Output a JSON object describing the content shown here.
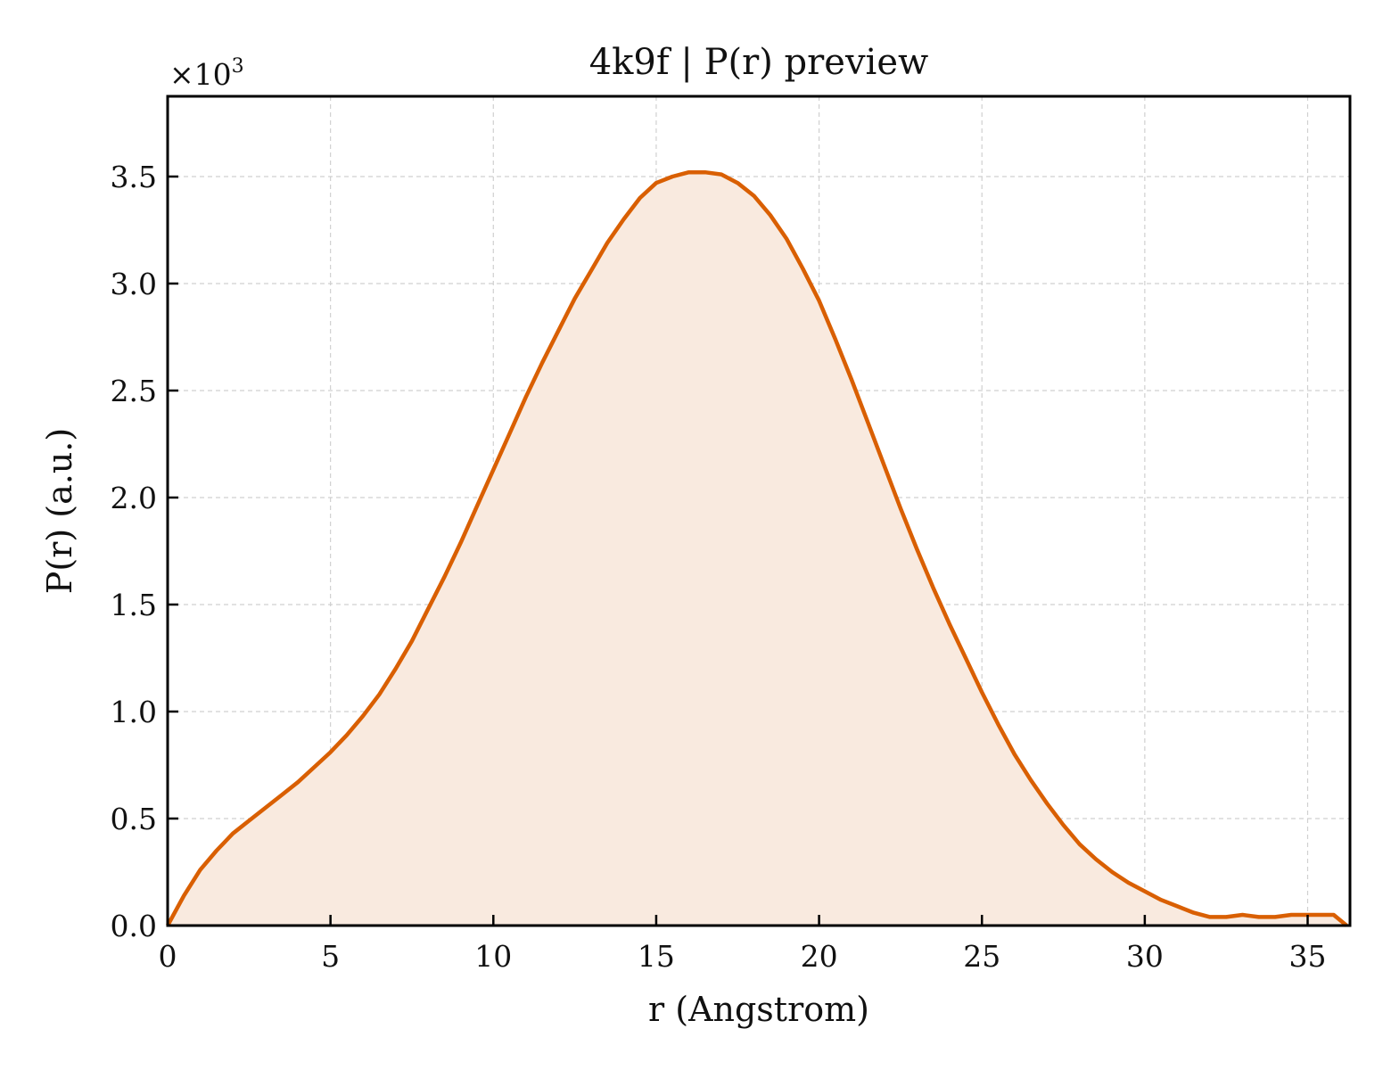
{
  "chart_data": {
    "type": "area",
    "title": "4k9f | P(r) preview",
    "xlabel": "r (Angstrom)",
    "ylabel": "P(r) (a.u.)",
    "y_scale_note": "×10",
    "y_scale_exponent": "3",
    "xlim": [
      0,
      36.3
    ],
    "ylim": [
      0,
      3.875
    ],
    "x_ticks": [
      0,
      5,
      10,
      15,
      20,
      25,
      30,
      35
    ],
    "x_tick_labels": [
      "0",
      "5",
      "10",
      "15",
      "20",
      "25",
      "30",
      "35"
    ],
    "y_ticks": [
      0,
      0.5,
      1.0,
      1.5,
      2.0,
      2.5,
      3.0,
      3.5
    ],
    "y_tick_labels": [
      "0.0",
      "0.5",
      "1.0",
      "1.5",
      "2.0",
      "2.5",
      "3.0",
      "3.5"
    ],
    "grid": true,
    "line_color": "#d95f02",
    "fill_color": "#f9eadf",
    "series": [
      {
        "x": [
          0,
          0.5,
          1,
          1.5,
          2,
          2.5,
          3,
          3.5,
          4,
          4.5,
          5,
          5.5,
          6,
          6.5,
          7,
          7.5,
          8,
          8.5,
          9,
          9.5,
          10,
          10.5,
          11,
          11.5,
          12,
          12.5,
          13,
          13.5,
          14,
          14.5,
          15,
          15.5,
          16,
          16.5,
          17,
          17.5,
          18,
          18.5,
          19,
          19.5,
          20,
          20.5,
          21,
          21.5,
          22,
          22.5,
          23,
          23.5,
          24,
          24.5,
          25,
          25.5,
          26,
          26.5,
          27,
          27.5,
          28,
          28.5,
          29,
          29.5,
          30,
          30.5,
          31,
          31.5,
          32,
          32.5,
          33,
          33.5,
          34,
          34.5,
          35,
          35.3,
          35.8,
          36.2
        ],
        "y": [
          0.0,
          0.14,
          0.26,
          0.35,
          0.43,
          0.49,
          0.55,
          0.61,
          0.67,
          0.74,
          0.81,
          0.89,
          0.98,
          1.08,
          1.2,
          1.33,
          1.48,
          1.63,
          1.79,
          1.96,
          2.13,
          2.3,
          2.47,
          2.63,
          2.78,
          2.93,
          3.06,
          3.19,
          3.3,
          3.4,
          3.47,
          3.5,
          3.52,
          3.52,
          3.51,
          3.47,
          3.41,
          3.32,
          3.21,
          3.07,
          2.92,
          2.74,
          2.55,
          2.35,
          2.15,
          1.95,
          1.76,
          1.58,
          1.41,
          1.25,
          1.09,
          0.94,
          0.8,
          0.68,
          0.57,
          0.47,
          0.38,
          0.31,
          0.25,
          0.2,
          0.16,
          0.12,
          0.09,
          0.06,
          0.04,
          0.04,
          0.05,
          0.04,
          0.04,
          0.05,
          0.05,
          0.05,
          0.05,
          0.0
        ]
      }
    ]
  }
}
